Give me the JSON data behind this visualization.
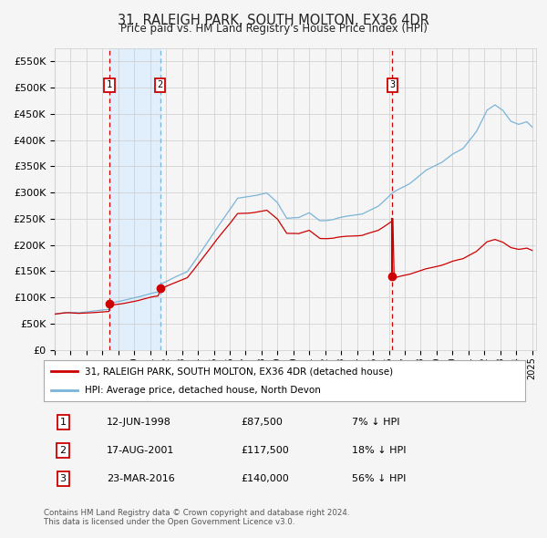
{
  "title": "31, RALEIGH PARK, SOUTH MOLTON, EX36 4DR",
  "subtitle": "Price paid vs. HM Land Registry's House Price Index (HPI)",
  "legend_line1": "31, RALEIGH PARK, SOUTH MOLTON, EX36 4DR (detached house)",
  "legend_line2": "HPI: Average price, detached house, North Devon",
  "transactions": [
    {
      "label": "1",
      "date": "12-JUN-1998",
      "price": 87500,
      "pct": "7%",
      "dir": "↓"
    },
    {
      "label": "2",
      "date": "17-AUG-2001",
      "price": 117500,
      "pct": "18%",
      "dir": "↓"
    },
    {
      "label": "3",
      "date": "23-MAR-2016",
      "price": 140000,
      "pct": "56%",
      "dir": "↓"
    }
  ],
  "footnote1": "Contains HM Land Registry data © Crown copyright and database right 2024.",
  "footnote2": "This data is licensed under the Open Government Licence v3.0.",
  "hpi_color": "#7ab4d8",
  "price_color": "#cc0000",
  "vline_color": "#cc0000",
  "vline2_color": "#7ab4d8",
  "shade_color": "#ddeeff",
  "grid_color": "#cccccc",
  "ylim": [
    0,
    575000
  ],
  "yticks": [
    0,
    50000,
    100000,
    150000,
    200000,
    250000,
    300000,
    350000,
    400000,
    450000,
    500000,
    550000
  ],
  "ytick_labels": [
    "£0",
    "£50K",
    "£100K",
    "£150K",
    "£200K",
    "£250K",
    "£300K",
    "£350K",
    "£400K",
    "£450K",
    "£500K",
    "£550K"
  ],
  "background_color": "#f5f5f5"
}
